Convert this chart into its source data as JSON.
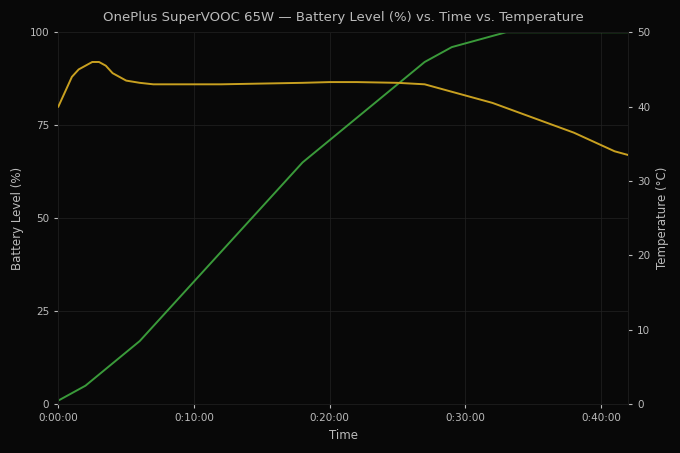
{
  "title": "OnePlus SuperVOOC 65W — Battery Level (%) vs. Time vs. Temperature",
  "xlabel": "Time",
  "ylabel_left": "Battery Level (%)",
  "ylabel_right": "Temperature (°C)",
  "bg_color": "#080808",
  "fig_color": "#080808",
  "text_color": "#bbbbbb",
  "grid_color": "#222222",
  "battery_color": "#3a9a3a",
  "temp_color": "#c8a020",
  "xlim_minutes": [
    0,
    42
  ],
  "ylim_battery": [
    0,
    100
  ],
  "ylim_temp": [
    0,
    50
  ],
  "xticks_minutes": [
    0,
    10,
    20,
    30,
    40
  ],
  "xtick_labels": [
    "0:00:00",
    "0:10:00",
    "0:20:00",
    "0:30:00",
    "0:40:00"
  ],
  "battery_time": [
    0,
    1,
    2,
    3,
    4,
    5,
    6,
    7,
    8,
    9,
    10,
    11,
    12,
    13,
    14,
    15,
    16,
    17,
    18,
    19,
    20,
    21,
    22,
    23,
    24,
    25,
    26,
    27,
    28,
    29,
    30,
    31,
    32,
    33,
    34,
    35,
    36,
    37,
    38,
    39,
    40,
    41,
    42
  ],
  "battery_pct": [
    1,
    3,
    5,
    8,
    11,
    14,
    17,
    21,
    25,
    29,
    33,
    37,
    41,
    45,
    49,
    53,
    57,
    61,
    65,
    68,
    71,
    74,
    77,
    80,
    83,
    86,
    89,
    92,
    94,
    96,
    97,
    98,
    99,
    100,
    100,
    100,
    100,
    100,
    100,
    100,
    100,
    100,
    100
  ],
  "temp_time": [
    0,
    0.5,
    1,
    1.5,
    2,
    2.5,
    3,
    3.5,
    4,
    5,
    6,
    7,
    8,
    9,
    10,
    12,
    15,
    18,
    20,
    22,
    25,
    27,
    28,
    30,
    32,
    35,
    38,
    41,
    42
  ],
  "temp_celsius": [
    40,
    42,
    44,
    45,
    45.5,
    46,
    46,
    45.5,
    44.5,
    43.5,
    43.2,
    43.0,
    43.0,
    43.0,
    43.0,
    43.0,
    43.1,
    43.2,
    43.3,
    43.3,
    43.2,
    43.0,
    42.5,
    41.5,
    40.5,
    38.5,
    36.5,
    34.0,
    33.5
  ]
}
